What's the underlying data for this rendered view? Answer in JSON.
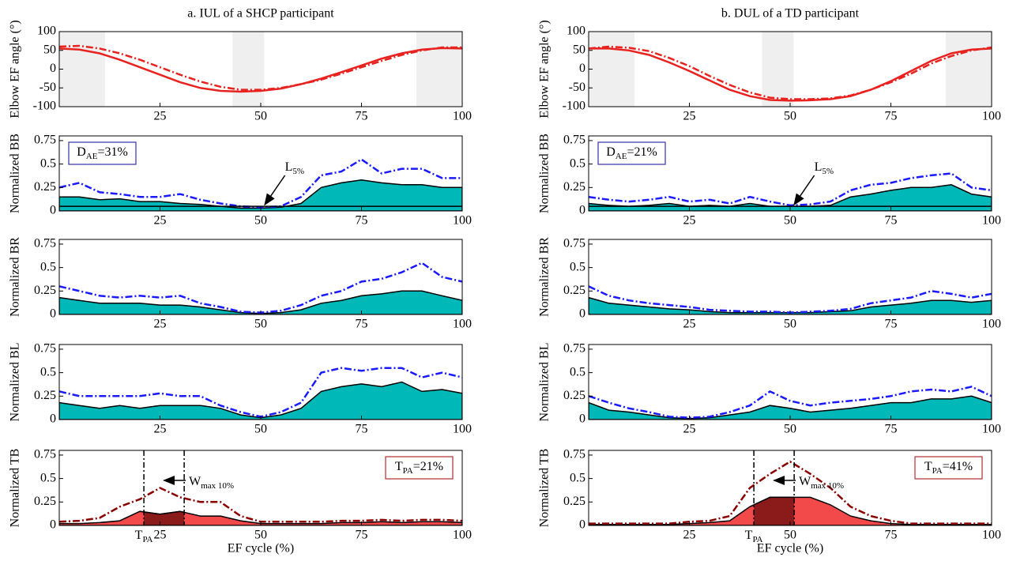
{
  "chart_data": [
    {
      "type": "line",
      "title": "a. IUL of a SHCP participant",
      "ylabel": "Elbow EF angle (°)",
      "xlim": [
        0,
        100
      ],
      "xticks": [
        25,
        50,
        75,
        100
      ],
      "ylim": [
        -100,
        100
      ],
      "yticks": [
        -100,
        -50,
        0,
        50,
        100
      ],
      "x": [
        0,
        5,
        10,
        15,
        20,
        25,
        30,
        35,
        40,
        45,
        50,
        55,
        60,
        65,
        70,
        75,
        80,
        85,
        90,
        95,
        100
      ],
      "series": [
        {
          "color": "#e8221e",
          "style": "solid",
          "values": [
            55,
            52,
            42,
            25,
            5,
            -15,
            -35,
            -50,
            -58,
            -60,
            -58,
            -52,
            -40,
            -25,
            -8,
            10,
            28,
            42,
            52,
            56,
            55
          ]
        },
        {
          "color": "#e8221e",
          "style": "dashdot",
          "values": [
            60,
            62,
            55,
            42,
            25,
            5,
            -15,
            -33,
            -47,
            -55,
            -55,
            -50,
            -40,
            -28,
            -12,
            5,
            22,
            38,
            50,
            58,
            58
          ]
        }
      ]
    },
    {
      "type": "area",
      "ylabel": "Normalized BB",
      "xlim": [
        0,
        100
      ],
      "xticks": [
        25,
        50,
        75,
        100
      ],
      "ylim": [
        0,
        0.8
      ],
      "yticks": [
        0,
        0.25,
        0.5,
        0.75
      ],
      "x": [
        0,
        5,
        10,
        15,
        20,
        25,
        30,
        35,
        40,
        45,
        50,
        55,
        60,
        65,
        70,
        75,
        80,
        85,
        90,
        95,
        100
      ],
      "series": [
        {
          "color": "#00b8b8",
          "style": "area",
          "values": [
            0.15,
            0.15,
            0.12,
            0.13,
            0.1,
            0.1,
            0.08,
            0.07,
            0.05,
            0.03,
            0.03,
            0.04,
            0.08,
            0.25,
            0.3,
            0.33,
            0.3,
            0.28,
            0.28,
            0.25,
            0.25
          ]
        },
        {
          "color": "#1a1aff",
          "style": "dashdot",
          "values": [
            0.25,
            0.3,
            0.2,
            0.18,
            0.15,
            0.15,
            0.18,
            0.12,
            0.08,
            0.05,
            0.04,
            0.05,
            0.15,
            0.38,
            0.42,
            0.55,
            0.4,
            0.45,
            0.45,
            0.35,
            0.35
          ]
        }
      ],
      "threshold": 0.05,
      "box": {
        "main": "D",
        "sub": "AE",
        "rest": "=31%",
        "color": "#3333aa",
        "corner": "top-left"
      },
      "arrow_note": {
        "main": "L",
        "sub": "5%"
      }
    },
    {
      "type": "area",
      "ylabel": "Normalized BR",
      "xlim": [
        0,
        100
      ],
      "xticks": [
        25,
        50,
        75,
        100
      ],
      "ylim": [
        0,
        0.8
      ],
      "yticks": [
        0,
        0.25,
        0.5,
        0.75
      ],
      "x": [
        0,
        5,
        10,
        15,
        20,
        25,
        30,
        35,
        40,
        45,
        50,
        55,
        60,
        65,
        70,
        75,
        80,
        85,
        90,
        95,
        100
      ],
      "series": [
        {
          "color": "#00b8b8",
          "style": "area",
          "values": [
            0.18,
            0.15,
            0.12,
            0.12,
            0.12,
            0.1,
            0.1,
            0.08,
            0.05,
            0.02,
            0.01,
            0.02,
            0.05,
            0.12,
            0.15,
            0.2,
            0.22,
            0.25,
            0.25,
            0.2,
            0.15
          ]
        },
        {
          "color": "#1a1aff",
          "style": "dashdot",
          "values": [
            0.3,
            0.25,
            0.2,
            0.18,
            0.2,
            0.18,
            0.2,
            0.12,
            0.08,
            0.03,
            0.02,
            0.04,
            0.1,
            0.2,
            0.25,
            0.35,
            0.38,
            0.45,
            0.55,
            0.4,
            0.35
          ]
        }
      ]
    },
    {
      "type": "area",
      "ylabel": "Normalized BL",
      "xlim": [
        0,
        100
      ],
      "xticks": [
        25,
        50,
        75,
        100
      ],
      "ylim": [
        0,
        0.8
      ],
      "yticks": [
        0,
        0.25,
        0.5,
        0.75
      ],
      "x": [
        0,
        5,
        10,
        15,
        20,
        25,
        30,
        35,
        40,
        45,
        50,
        55,
        60,
        65,
        70,
        75,
        80,
        85,
        90,
        95,
        100
      ],
      "series": [
        {
          "color": "#00b8b8",
          "style": "area",
          "values": [
            0.18,
            0.15,
            0.12,
            0.15,
            0.12,
            0.15,
            0.15,
            0.15,
            0.12,
            0.05,
            0.02,
            0.05,
            0.12,
            0.3,
            0.35,
            0.38,
            0.35,
            0.4,
            0.3,
            0.32,
            0.28
          ]
        },
        {
          "color": "#1a1aff",
          "style": "dashdot",
          "values": [
            0.3,
            0.25,
            0.25,
            0.25,
            0.25,
            0.28,
            0.25,
            0.25,
            0.15,
            0.08,
            0.03,
            0.08,
            0.18,
            0.5,
            0.55,
            0.52,
            0.55,
            0.55,
            0.45,
            0.5,
            0.45
          ]
        }
      ]
    },
    {
      "type": "area",
      "ylabel": "Normalized TB",
      "xlabel": "EF cycle (%)",
      "xlim": [
        0,
        100
      ],
      "xticks": [
        25,
        50,
        75,
        100
      ],
      "ylim": [
        0,
        0.8
      ],
      "yticks": [
        0,
        0.25,
        0.5,
        0.75
      ],
      "x": [
        0,
        5,
        10,
        15,
        20,
        25,
        30,
        35,
        40,
        45,
        50,
        55,
        60,
        65,
        70,
        75,
        80,
        85,
        90,
        95,
        100
      ],
      "series": [
        {
          "color": "#f24a4a",
          "style": "area",
          "values": [
            0.02,
            0.02,
            0.03,
            0.05,
            0.15,
            0.12,
            0.15,
            0.1,
            0.1,
            0.05,
            0.02,
            0.02,
            0.02,
            0.02,
            0.03,
            0.03,
            0.04,
            0.03,
            0.04,
            0.04,
            0.03
          ]
        },
        {
          "color": "#8b0000",
          "style": "dashdot",
          "values": [
            0.04,
            0.05,
            0.08,
            0.2,
            0.28,
            0.4,
            0.3,
            0.25,
            0.25,
            0.1,
            0.04,
            0.04,
            0.04,
            0.04,
            0.05,
            0.05,
            0.06,
            0.05,
            0.06,
            0.06,
            0.05
          ]
        }
      ],
      "window": [
        21,
        31
      ],
      "window_color": "#8b1a1a",
      "window_label": {
        "main": "T",
        "sub": "PA"
      },
      "box": {
        "main": "T",
        "sub": "PA",
        "rest": "=21%",
        "color": "#b03030",
        "corner": "top-right"
      },
      "arrow_note": {
        "main": "W",
        "sub": "max 10%"
      }
    },
    {
      "type": "line",
      "title": "b. DUL of a TD participant",
      "ylabel": "Elbow EF angle (°)",
      "xlim": [
        0,
        100
      ],
      "xticks": [
        25,
        50,
        75,
        100
      ],
      "ylim": [
        -100,
        100
      ],
      "yticks": [
        -100,
        -50,
        0,
        50,
        100
      ],
      "x": [
        0,
        5,
        10,
        15,
        20,
        25,
        30,
        35,
        40,
        45,
        50,
        55,
        60,
        65,
        70,
        75,
        80,
        85,
        90,
        95,
        100
      ],
      "series": [
        {
          "color": "#e8221e",
          "style": "solid",
          "values": [
            55,
            55,
            50,
            38,
            18,
            -5,
            -30,
            -55,
            -72,
            -82,
            -84,
            -83,
            -80,
            -72,
            -55,
            -32,
            -5,
            22,
            42,
            52,
            55
          ]
        },
        {
          "color": "#e8221e",
          "style": "dashdot",
          "values": [
            55,
            60,
            57,
            48,
            30,
            8,
            -18,
            -42,
            -62,
            -76,
            -80,
            -80,
            -78,
            -70,
            -55,
            -35,
            -12,
            15,
            35,
            50,
            58
          ]
        }
      ]
    },
    {
      "type": "area",
      "ylabel": "Normalized BB",
      "xlim": [
        0,
        100
      ],
      "xticks": [
        25,
        50,
        75,
        100
      ],
      "ylim": [
        0,
        0.8
      ],
      "yticks": [
        0,
        0.25,
        0.5,
        0.75
      ],
      "x": [
        0,
        5,
        10,
        15,
        20,
        25,
        30,
        35,
        40,
        45,
        50,
        55,
        60,
        65,
        70,
        75,
        80,
        85,
        90,
        95,
        100
      ],
      "series": [
        {
          "color": "#00b8b8",
          "style": "area",
          "values": [
            0.08,
            0.06,
            0.05,
            0.06,
            0.08,
            0.05,
            0.06,
            0.05,
            0.08,
            0.05,
            0.05,
            0.05,
            0.06,
            0.15,
            0.18,
            0.22,
            0.25,
            0.25,
            0.28,
            0.18,
            0.15
          ]
        },
        {
          "color": "#1a1aff",
          "style": "dashdot",
          "values": [
            0.15,
            0.12,
            0.1,
            0.12,
            0.15,
            0.1,
            0.12,
            0.08,
            0.15,
            0.1,
            0.06,
            0.07,
            0.1,
            0.22,
            0.28,
            0.3,
            0.35,
            0.38,
            0.4,
            0.25,
            0.22
          ]
        }
      ],
      "threshold": 0.05,
      "box": {
        "main": "D",
        "sub": "AE",
        "rest": "=21%",
        "color": "#3333aa",
        "corner": "top-left"
      },
      "arrow_note": {
        "main": "L",
        "sub": "5%"
      }
    },
    {
      "type": "area",
      "ylabel": "Normalized BR",
      "xlim": [
        0,
        100
      ],
      "xticks": [
        25,
        50,
        75,
        100
      ],
      "ylim": [
        0,
        0.8
      ],
      "yticks": [
        0,
        0.25,
        0.5,
        0.75
      ],
      "x": [
        0,
        5,
        10,
        15,
        20,
        25,
        30,
        35,
        40,
        45,
        50,
        55,
        60,
        65,
        70,
        75,
        80,
        85,
        90,
        95,
        100
      ],
      "series": [
        {
          "color": "#00b8b8",
          "style": "area",
          "values": [
            0.18,
            0.12,
            0.1,
            0.08,
            0.06,
            0.05,
            0.03,
            0.02,
            0.02,
            0.02,
            0.02,
            0.02,
            0.03,
            0.04,
            0.08,
            0.1,
            0.12,
            0.15,
            0.15,
            0.13,
            0.15
          ]
        },
        {
          "color": "#1a1aff",
          "style": "dashdot",
          "values": [
            0.3,
            0.2,
            0.15,
            0.12,
            0.1,
            0.08,
            0.05,
            0.04,
            0.03,
            0.03,
            0.02,
            0.03,
            0.04,
            0.06,
            0.12,
            0.15,
            0.18,
            0.25,
            0.22,
            0.18,
            0.22
          ]
        }
      ]
    },
    {
      "type": "area",
      "ylabel": "Normalized BL",
      "xlim": [
        0,
        100
      ],
      "xticks": [
        25,
        50,
        75,
        100
      ],
      "ylim": [
        0,
        0.8
      ],
      "yticks": [
        0,
        0.25,
        0.5,
        0.75
      ],
      "x": [
        0,
        5,
        10,
        15,
        20,
        25,
        30,
        35,
        40,
        45,
        50,
        55,
        60,
        65,
        70,
        75,
        80,
        85,
        90,
        95,
        100
      ],
      "series": [
        {
          "color": "#00b8b8",
          "style": "area",
          "values": [
            0.18,
            0.1,
            0.08,
            0.05,
            0.02,
            0.01,
            0.02,
            0.05,
            0.08,
            0.15,
            0.12,
            0.08,
            0.1,
            0.12,
            0.15,
            0.18,
            0.18,
            0.22,
            0.22,
            0.25,
            0.18
          ]
        },
        {
          "color": "#1a1aff",
          "style": "dashdot",
          "values": [
            0.25,
            0.18,
            0.12,
            0.08,
            0.03,
            0.02,
            0.03,
            0.08,
            0.15,
            0.3,
            0.2,
            0.15,
            0.18,
            0.2,
            0.22,
            0.25,
            0.3,
            0.32,
            0.3,
            0.35,
            0.25
          ]
        }
      ]
    },
    {
      "type": "area",
      "ylabel": "Normalized TB",
      "xlabel": "EF cycle (%)",
      "xlim": [
        0,
        100
      ],
      "xticks": [
        25,
        50,
        75,
        100
      ],
      "ylim": [
        0,
        0.8
      ],
      "yticks": [
        0,
        0.25,
        0.5,
        0.75
      ],
      "x": [
        0,
        5,
        10,
        15,
        20,
        25,
        30,
        35,
        40,
        45,
        50,
        55,
        60,
        65,
        70,
        75,
        80,
        85,
        90,
        95,
        100
      ],
      "series": [
        {
          "color": "#f24a4a",
          "style": "area",
          "values": [
            0.01,
            0.01,
            0.01,
            0.01,
            0.01,
            0.02,
            0.03,
            0.05,
            0.2,
            0.3,
            0.3,
            0.3,
            0.22,
            0.1,
            0.05,
            0.02,
            0.01,
            0.01,
            0.01,
            0.01,
            0.01
          ]
        },
        {
          "color": "#8b0000",
          "style": "dashdot",
          "values": [
            0.02,
            0.02,
            0.02,
            0.02,
            0.02,
            0.04,
            0.05,
            0.1,
            0.4,
            0.55,
            0.68,
            0.55,
            0.4,
            0.2,
            0.1,
            0.05,
            0.02,
            0.02,
            0.02,
            0.02,
            0.02
          ]
        }
      ],
      "window": [
        41,
        51
      ],
      "window_color": "#8b1a1a",
      "window_label": {
        "main": "T",
        "sub": "PA"
      },
      "box": {
        "main": "T",
        "sub": "PA",
        "rest": "=41%",
        "color": "#b03030",
        "corner": "top-right"
      },
      "arrow_note": {
        "main": "W",
        "sub": "max 10%"
      }
    }
  ]
}
